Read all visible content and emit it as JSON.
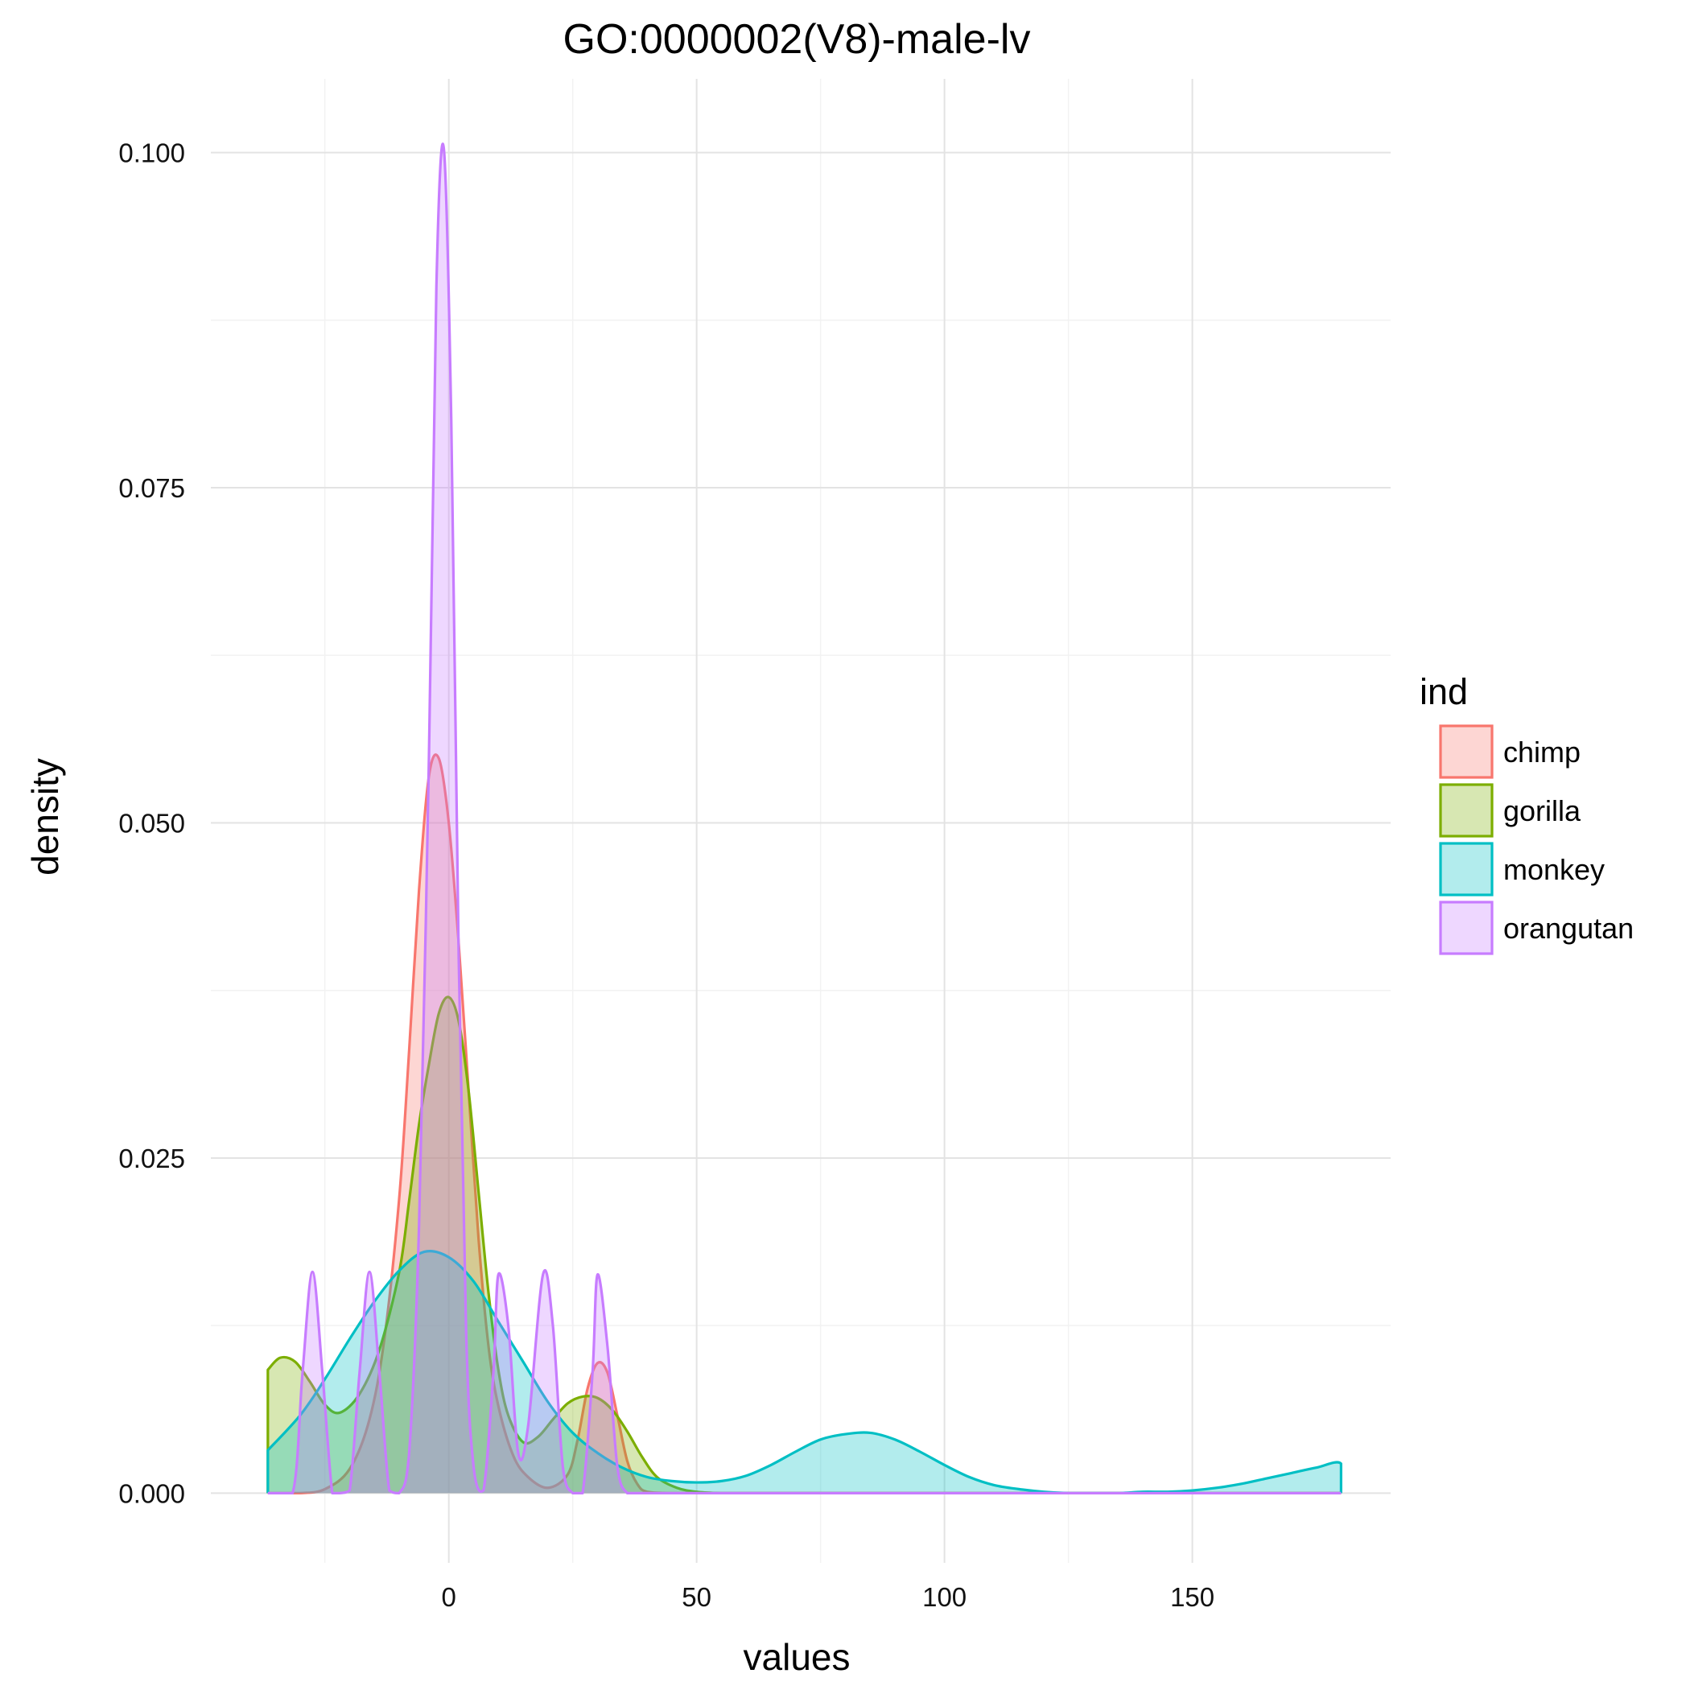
{
  "chart_data": {
    "type": "area",
    "title": "GO:0000002(V8)-male-lv",
    "xlabel": "values",
    "ylabel": "density",
    "xlim": [
      -48,
      190
    ],
    "ylim": [
      -0.0052,
      0.1055
    ],
    "x_ticks": [
      0,
      50,
      100,
      150
    ],
    "x_tick_labels": [
      "0",
      "50",
      "100",
      "150"
    ],
    "x_minor_ticks": [
      -25,
      25,
      75,
      125
    ],
    "y_ticks": [
      0,
      0.025,
      0.05,
      0.075,
      0.1
    ],
    "y_tick_labels": [
      "0.000",
      "0.025",
      "0.050",
      "0.075",
      "0.100"
    ],
    "y_minor_ticks": [
      0.0125,
      0.0375,
      0.0625,
      0.0875
    ],
    "grid": true,
    "legend": {
      "title": "ind",
      "position": "right"
    },
    "series": [
      {
        "name": "chimp",
        "color": "#F8766D",
        "x": [
          -36.5,
          -30,
          -25,
          -20,
          -16,
          -13,
          -10,
          -8,
          -6,
          -4,
          -2,
          0,
          2,
          4,
          6,
          8,
          10,
          13,
          16,
          20,
          24,
          26,
          28,
          30,
          32,
          34,
          36,
          38,
          40,
          45,
          50,
          55,
          60,
          80,
          100,
          140,
          180
        ],
        "y": [
          0,
          0,
          0.0003,
          0.0018,
          0.0055,
          0.0115,
          0.022,
          0.033,
          0.045,
          0.0535,
          0.0548,
          0.05,
          0.041,
          0.03,
          0.019,
          0.011,
          0.0065,
          0.0028,
          0.0012,
          0.0004,
          0.0014,
          0.004,
          0.0078,
          0.0097,
          0.009,
          0.0058,
          0.0024,
          0.0007,
          0.0001,
          0,
          0,
          0,
          0,
          0,
          0,
          0,
          0
        ]
      },
      {
        "name": "gorilla",
        "color": "#7CAE00",
        "x": [
          -36.5,
          -34,
          -31,
          -28,
          -25,
          -22,
          -18,
          -14,
          -10,
          -8,
          -6,
          -4,
          -2,
          0,
          2,
          4,
          6,
          8,
          10,
          12,
          15,
          18,
          21,
          24,
          27,
          30,
          33,
          36,
          39,
          42,
          46,
          50,
          55,
          60,
          80,
          100,
          140,
          180
        ],
        "y": [
          0.0092,
          0.0101,
          0.0098,
          0.0083,
          0.0066,
          0.006,
          0.0074,
          0.0107,
          0.0165,
          0.0218,
          0.0275,
          0.032,
          0.0358,
          0.037,
          0.0352,
          0.03,
          0.0225,
          0.015,
          0.0092,
          0.0058,
          0.0038,
          0.0042,
          0.0055,
          0.0067,
          0.0072,
          0.0071,
          0.0062,
          0.0046,
          0.0027,
          0.0012,
          0.0004,
          0.0001,
          0,
          0,
          0,
          0,
          0,
          0
        ]
      },
      {
        "name": "monkey",
        "color": "#00BFC4",
        "x": [
          -36.5,
          -30,
          -25,
          -20,
          -15,
          -10,
          -5,
          0,
          5,
          10,
          15,
          20,
          25,
          30,
          35,
          40,
          45,
          50,
          55,
          60,
          65,
          70,
          75,
          80,
          85,
          90,
          95,
          100,
          105,
          110,
          115,
          120,
          125,
          130,
          135,
          140,
          145,
          150,
          155,
          160,
          165,
          170,
          175,
          180,
          180
        ],
        "y": [
          0.0032,
          0.0058,
          0.0085,
          0.0115,
          0.0143,
          0.0166,
          0.018,
          0.0176,
          0.0158,
          0.0128,
          0.0098,
          0.0068,
          0.0045,
          0.003,
          0.0019,
          0.0012,
          0.0009,
          0.0008,
          0.0009,
          0.0013,
          0.0021,
          0.0031,
          0.004,
          0.0044,
          0.0045,
          0.004,
          0.0031,
          0.0021,
          0.0012,
          0.0006,
          0.0003,
          0.0001,
          0,
          0,
          0,
          0.0001,
          0.0001,
          0.0002,
          0.0004,
          0.0007,
          0.0011,
          0.0015,
          0.0019,
          0.0022,
          0
        ]
      },
      {
        "name": "orangutan",
        "color": "#C77CFF",
        "x": [
          -36.5,
          -31.5,
          -29.5,
          -27.5,
          -25.5,
          -23.5,
          -22,
          -20,
          -18,
          -16,
          -14,
          -12,
          -10,
          -8,
          -6,
          -4,
          -2.5,
          -1,
          0.5,
          2,
          3.5,
          5,
          7,
          9,
          10,
          12,
          14,
          16,
          19,
          21,
          23,
          25,
          27,
          29,
          30,
          32,
          34,
          36,
          38,
          40,
          60,
          100,
          140,
          180
        ],
        "y": [
          0,
          0,
          0.009,
          0.0165,
          0.009,
          0,
          0,
          0.0002,
          0.009,
          0.0165,
          0.009,
          0.0002,
          0,
          0.003,
          0.02,
          0.055,
          0.09,
          0.1003,
          0.08,
          0.04,
          0.012,
          0.002,
          0.0002,
          0.009,
          0.0163,
          0.0125,
          0.003,
          0.005,
          0.0163,
          0.0125,
          0.002,
          0,
          0,
          0.009,
          0.0163,
          0.011,
          0.002,
          0,
          0,
          0,
          0,
          0,
          0,
          0
        ]
      }
    ]
  }
}
